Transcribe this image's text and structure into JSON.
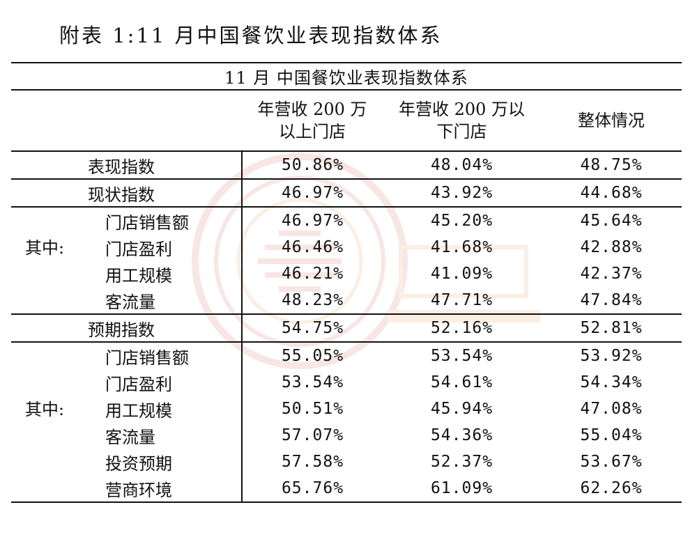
{
  "caption": "附表 1:11 月中国餐饮业表现指数体系",
  "table": {
    "title": "11 月  中国餐饮业表现指数体系",
    "columns": {
      "col1_line1": "年营收 200 万",
      "col1_line2": "以上门店",
      "col2_line1": "年营收 200 万以",
      "col2_line2": "下门店",
      "col3": "整体情况"
    },
    "group_label": "其中:",
    "performance": {
      "label": "表现指数",
      "values": [
        "50.86%",
        "48.04%",
        "48.75%"
      ]
    },
    "current": {
      "label": "现状指数",
      "values": [
        "46.97%",
        "43.92%",
        "44.68%"
      ]
    },
    "current_sub": [
      {
        "label": "门店销售额",
        "values": [
          "46.97%",
          "45.20%",
          "45.64%"
        ]
      },
      {
        "label": "门店盈利",
        "values": [
          "46.46%",
          "41.68%",
          "42.88%"
        ]
      },
      {
        "label": "用工规模",
        "values": [
          "46.21%",
          "41.09%",
          "42.37%"
        ]
      },
      {
        "label": "客流量",
        "values": [
          "48.23%",
          "47.71%",
          "47.84%"
        ]
      }
    ],
    "expect": {
      "label": "预期指数",
      "values": [
        "54.75%",
        "52.16%",
        "52.81%"
      ]
    },
    "expect_sub": [
      {
        "label": "门店销售额",
        "values": [
          "55.05%",
          "53.54%",
          "53.92%"
        ]
      },
      {
        "label": "门店盈利",
        "values": [
          "53.54%",
          "54.61%",
          "54.34%"
        ]
      },
      {
        "label": "用工规模",
        "values": [
          "50.51%",
          "45.94%",
          "47.08%"
        ]
      },
      {
        "label": "客流量",
        "values": [
          "57.07%",
          "54.36%",
          "55.04%"
        ]
      },
      {
        "label": "投资预期",
        "values": [
          "57.58%",
          "52.37%",
          "53.67%"
        ]
      },
      {
        "label": "营商环境",
        "values": [
          "65.76%",
          "61.09%",
          "62.26%"
        ]
      }
    ]
  }
}
